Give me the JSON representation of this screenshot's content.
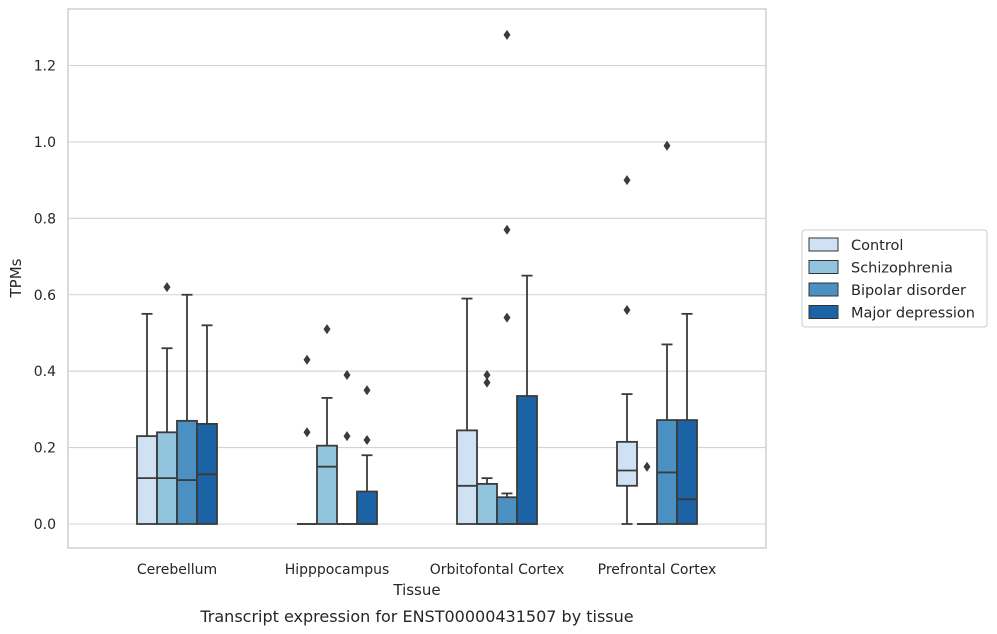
{
  "chart_data": {
    "type": "box",
    "title": "",
    "caption": "Transcript expression for ENST00000431507 by tissue",
    "xlabel": "Tissue",
    "ylabel": "TPMs",
    "ylim": [
      -0.065,
      1.35
    ],
    "yticks": [
      0.0,
      0.2,
      0.4,
      0.6,
      0.8,
      1.0,
      1.2
    ],
    "ytick_labels": [
      "0.0",
      "0.2",
      "0.4",
      "0.6",
      "0.8",
      "1.0",
      "1.2"
    ],
    "grid": "horizontal",
    "legend_position": "right",
    "categories": [
      "Cerebellum",
      "Hipppocampus",
      "Orbitofontal Cortex",
      "Prefrontal Cortex"
    ],
    "series": [
      {
        "name": "Control",
        "color": "#cfe1f2",
        "boxes": [
          {
            "low": 0.0,
            "q1": 0.0,
            "median": 0.12,
            "q3": 0.23,
            "high": 0.55,
            "outliers": []
          },
          {
            "low": 0.0,
            "q1": 0.0,
            "median": 0.0,
            "q3": 0.0,
            "high": 0.0,
            "outliers": [
              0.24,
              0.43
            ]
          },
          {
            "low": 0.0,
            "q1": 0.0,
            "median": 0.1,
            "q3": 0.245,
            "high": 0.59,
            "outliers": []
          },
          {
            "low": 0.0,
            "q1": 0.1,
            "median": 0.14,
            "q3": 0.215,
            "high": 0.34,
            "outliers": [
              0.56,
              0.9
            ]
          }
        ]
      },
      {
        "name": "Schizophrenia",
        "color": "#93c4de",
        "boxes": [
          {
            "low": 0.0,
            "q1": 0.0,
            "median": 0.12,
            "q3": 0.24,
            "high": 0.46,
            "outliers": [
              0.62
            ]
          },
          {
            "low": 0.0,
            "q1": 0.0,
            "median": 0.15,
            "q3": 0.205,
            "high": 0.33,
            "outliers": [
              0.51
            ]
          },
          {
            "low": 0.0,
            "q1": 0.0,
            "median": 0.0,
            "q3": 0.105,
            "high": 0.12,
            "outliers": [
              0.37,
              0.39
            ]
          },
          {
            "low": 0.0,
            "q1": 0.0,
            "median": 0.0,
            "q3": 0.0,
            "high": 0.0,
            "outliers": [
              0.15
            ]
          }
        ]
      },
      {
        "name": "Bipolar disorder",
        "color": "#4a90c2",
        "boxes": [
          {
            "low": 0.0,
            "q1": 0.0,
            "median": 0.115,
            "q3": 0.27,
            "high": 0.6,
            "outliers": []
          },
          {
            "low": 0.0,
            "q1": 0.0,
            "median": 0.0,
            "q3": 0.0,
            "high": 0.0,
            "outliers": [
              0.23,
              0.39
            ]
          },
          {
            "low": 0.0,
            "q1": 0.0,
            "median": 0.0,
            "q3": 0.07,
            "high": 0.08,
            "outliers": [
              0.54,
              0.77,
              1.28
            ]
          },
          {
            "low": 0.0,
            "q1": 0.0,
            "median": 0.135,
            "q3": 0.272,
            "high": 0.47,
            "outliers": [
              0.99
            ]
          }
        ]
      },
      {
        "name": "Major depression",
        "color": "#1b63a5",
        "boxes": [
          {
            "low": 0.0,
            "q1": 0.0,
            "median": 0.13,
            "q3": 0.262,
            "high": 0.52,
            "outliers": []
          },
          {
            "low": 0.0,
            "q1": 0.0,
            "median": 0.0,
            "q3": 0.085,
            "high": 0.18,
            "outliers": [
              0.22,
              0.35
            ]
          },
          {
            "low": 0.0,
            "q1": 0.0,
            "median": 0.0,
            "q3": 0.335,
            "high": 0.65,
            "outliers": []
          },
          {
            "low": 0.0,
            "q1": 0.0,
            "median": 0.065,
            "q3": 0.272,
            "high": 0.55,
            "outliers": []
          }
        ]
      }
    ]
  }
}
